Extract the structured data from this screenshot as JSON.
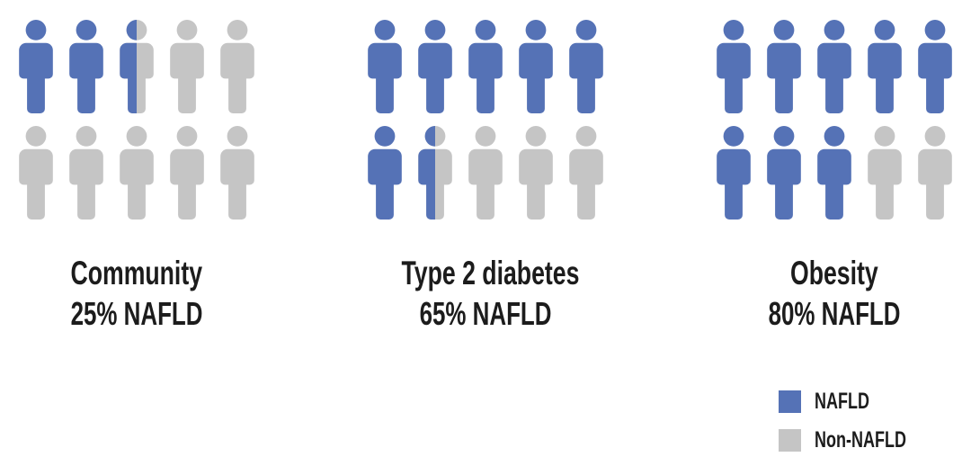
{
  "colors": {
    "nafld": "#5572b6",
    "non_nafld": "#c5c5c5",
    "text": "#1c1c1c"
  },
  "chart_data": {
    "type": "pictogram",
    "icon": "person",
    "icon_value_pct": 10,
    "icons_per_group": 10,
    "icons_per_row": 5,
    "rows_per_group": 2,
    "groups": [
      {
        "label": "Community",
        "value_label": "25% NAFLD",
        "nafld_pct": 25,
        "icons_full": 2,
        "icons_half": 1,
        "icons_empty": 7
      },
      {
        "label": "Type 2 diabetes",
        "value_label": "65% NAFLD",
        "nafld_pct": 65,
        "icons_full": 6,
        "icons_half": 1,
        "icons_empty": 3
      },
      {
        "label": "Obesity",
        "value_label": "80% NAFLD",
        "nafld_pct": 80,
        "icons_full": 8,
        "icons_half": 0,
        "icons_empty": 2
      }
    ],
    "legend": [
      {
        "label": "NAFLD",
        "color_key": "nafld"
      },
      {
        "label": "Non-NAFLD",
        "color_key": "non_nafld"
      }
    ]
  }
}
